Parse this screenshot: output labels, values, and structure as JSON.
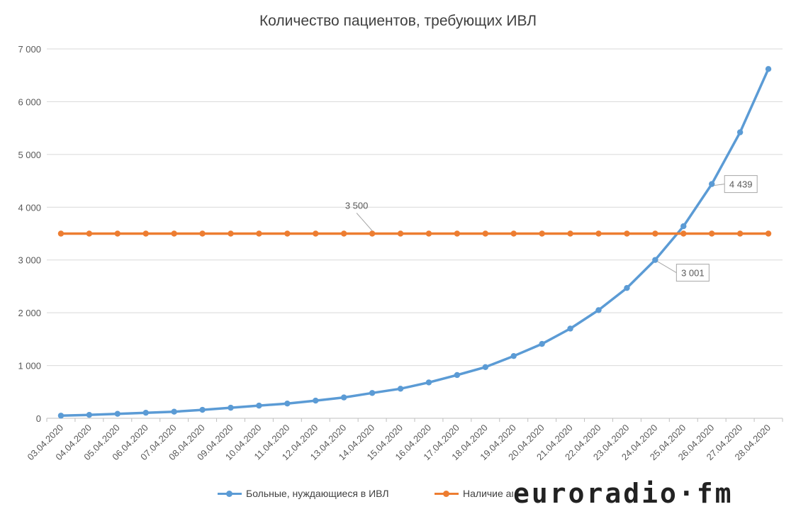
{
  "chart_data": {
    "type": "line",
    "title": "Количество пациентов, требующих ИВЛ",
    "categories": [
      "03.04.2020",
      "04.04.2020",
      "05.04.2020",
      "06.04.2020",
      "07.04.2020",
      "08.04.2020",
      "09.04.2020",
      "10.04.2020",
      "11.04.2020",
      "12.04.2020",
      "13.04.2020",
      "14.04.2020",
      "15.04.2020",
      "16.04.2020",
      "17.04.2020",
      "18.04.2020",
      "19.04.2020",
      "20.04.2020",
      "21.04.2020",
      "22.04.2020",
      "23.04.2020",
      "24.04.2020",
      "25.04.2020",
      "26.04.2020",
      "27.04.2020",
      "28.04.2020"
    ],
    "ylim": [
      0,
      7000
    ],
    "yticks": [
      0,
      1000,
      2000,
      3000,
      4000,
      5000,
      6000,
      7000
    ],
    "ytick_labels": [
      "0",
      "1 000",
      "2 000",
      "3 000",
      "4 000",
      "5 000",
      "6 000",
      "7 000"
    ],
    "grid": true,
    "legend_position": "bottom",
    "series": [
      {
        "name": "Больные, нуждающиеся в ИВЛ",
        "color": "#5b9bd5",
        "values": [
          50,
          65,
          85,
          105,
          125,
          160,
          200,
          240,
          280,
          335,
          395,
          480,
          560,
          680,
          820,
          970,
          1180,
          1410,
          1700,
          2050,
          2470,
          3001,
          3640,
          4439,
          5420,
          6620
        ]
      },
      {
        "name": "Наличие аппаратов ИВЛ",
        "color": "#ed7d31",
        "values": [
          3500,
          3500,
          3500,
          3500,
          3500,
          3500,
          3500,
          3500,
          3500,
          3500,
          3500,
          3500,
          3500,
          3500,
          3500,
          3500,
          3500,
          3500,
          3500,
          3500,
          3500,
          3500,
          3500,
          3500,
          3500,
          3500
        ]
      }
    ],
    "annotations": [
      {
        "text": "3 500",
        "series": 1,
        "index": 11
      },
      {
        "text": "3 001",
        "series": 0,
        "index": 21
      },
      {
        "text": "4 439",
        "series": 0,
        "index": 23
      }
    ]
  },
  "watermark": {
    "text": "euroradio·fm"
  }
}
